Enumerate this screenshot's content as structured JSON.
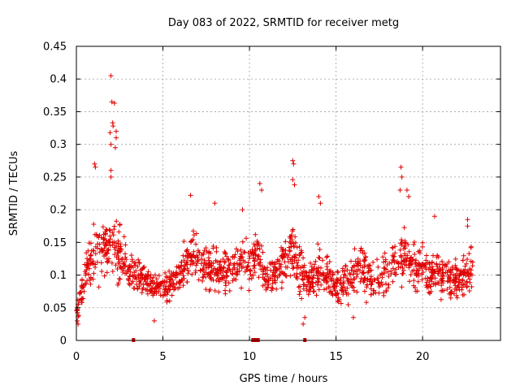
{
  "chart_data": {
    "type": "scatter",
    "title": "Day 083 of 2022, SRMTID for receiver metg",
    "xlabel": "GPS time / hours",
    "ylabel": "SRMTID / TECUs",
    "xlim": [
      0,
      24.5
    ],
    "ylim": [
      0,
      0.45
    ],
    "x_ticks": [
      0,
      5,
      10,
      15,
      20
    ],
    "x_tick_labels": [
      "0",
      "5",
      "10",
      "15",
      "20"
    ],
    "y_ticks": [
      0,
      0.05,
      0.1,
      0.15,
      0.2,
      0.25,
      0.3,
      0.35,
      0.4,
      0.45
    ],
    "y_tick_labels": [
      "0",
      "0.05",
      "0.1",
      "0.15",
      "0.2",
      "0.25",
      "0.3",
      "0.35",
      "0.4",
      "0.45"
    ],
    "grid": true,
    "marker": "plus",
    "series_color": "#e00000",
    "baseline_marks_x": [
      3.3,
      10.2,
      10.35,
      10.5,
      13.2
    ],
    "series": [
      {
        "name": "SRMTID",
        "envelope": {
          "x": [
            0,
            0.3,
            0.7,
            1.0,
            1.5,
            2.0,
            2.5,
            3.0,
            3.5,
            4.0,
            4.5,
            5.0,
            5.5,
            6.0,
            6.5,
            7.0,
            7.5,
            8.0,
            8.5,
            9.0,
            9.5,
            10.0,
            10.5,
            11.0,
            11.5,
            12.0,
            12.5,
            13.0,
            13.5,
            14.0,
            14.5,
            15.0,
            15.5,
            16.0,
            16.5,
            17.0,
            17.5,
            18.0,
            18.5,
            19.0,
            19.5,
            20.0,
            20.5,
            21.0,
            21.5,
            22.0,
            22.5,
            22.9
          ],
          "mean": [
            0.045,
            0.075,
            0.11,
            0.13,
            0.14,
            0.15,
            0.13,
            0.11,
            0.1,
            0.095,
            0.08,
            0.08,
            0.085,
            0.1,
            0.13,
            0.12,
            0.11,
            0.11,
            0.1,
            0.11,
            0.12,
            0.12,
            0.13,
            0.09,
            0.1,
            0.12,
            0.14,
            0.1,
            0.09,
            0.11,
            0.1,
            0.08,
            0.09,
            0.1,
            0.11,
            0.09,
            0.1,
            0.1,
            0.12,
            0.13,
            0.11,
            0.11,
            0.1,
            0.1,
            0.1,
            0.09,
            0.1,
            0.11
          ],
          "spread": [
            0.02,
            0.035,
            0.05,
            0.06,
            0.06,
            0.06,
            0.055,
            0.045,
            0.035,
            0.03,
            0.025,
            0.025,
            0.03,
            0.04,
            0.05,
            0.05,
            0.045,
            0.045,
            0.045,
            0.045,
            0.045,
            0.05,
            0.05,
            0.035,
            0.04,
            0.045,
            0.05,
            0.045,
            0.04,
            0.045,
            0.04,
            0.035,
            0.04,
            0.04,
            0.04,
            0.04,
            0.04,
            0.04,
            0.045,
            0.05,
            0.045,
            0.04,
            0.04,
            0.04,
            0.04,
            0.04,
            0.04,
            0.04
          ]
        },
        "n_points": 1500,
        "seed": 83,
        "peaks": [
          {
            "x": 1.05,
            "y": 0.27
          },
          {
            "x": 1.1,
            "y": 0.265
          },
          {
            "x": 2.0,
            "y": 0.405
          },
          {
            "x": 2.05,
            "y": 0.365
          },
          {
            "x": 2.2,
            "y": 0.363
          },
          {
            "x": 2.1,
            "y": 0.333
          },
          {
            "x": 2.12,
            "y": 0.328
          },
          {
            "x": 1.95,
            "y": 0.318
          },
          {
            "x": 2.3,
            "y": 0.32
          },
          {
            "x": 2.3,
            "y": 0.31
          },
          {
            "x": 2.0,
            "y": 0.3
          },
          {
            "x": 2.25,
            "y": 0.295
          },
          {
            "x": 2.0,
            "y": 0.26
          },
          {
            "x": 2.0,
            "y": 0.25
          },
          {
            "x": 6.6,
            "y": 0.222
          },
          {
            "x": 8.0,
            "y": 0.21
          },
          {
            "x": 9.6,
            "y": 0.2
          },
          {
            "x": 10.6,
            "y": 0.24
          },
          {
            "x": 10.7,
            "y": 0.23
          },
          {
            "x": 12.5,
            "y": 0.275
          },
          {
            "x": 12.55,
            "y": 0.27
          },
          {
            "x": 12.5,
            "y": 0.246
          },
          {
            "x": 12.6,
            "y": 0.238
          },
          {
            "x": 14.0,
            "y": 0.22
          },
          {
            "x": 14.1,
            "y": 0.21
          },
          {
            "x": 18.75,
            "y": 0.265
          },
          {
            "x": 18.8,
            "y": 0.25
          },
          {
            "x": 18.7,
            "y": 0.23
          },
          {
            "x": 19.1,
            "y": 0.23
          },
          {
            "x": 19.2,
            "y": 0.22
          },
          {
            "x": 20.7,
            "y": 0.19
          },
          {
            "x": 22.6,
            "y": 0.185
          },
          {
            "x": 22.6,
            "y": 0.175
          },
          {
            "x": 13.1,
            "y": 0.025
          },
          {
            "x": 13.2,
            "y": 0.035
          },
          {
            "x": 0.1,
            "y": 0.025
          },
          {
            "x": 0.05,
            "y": 0.03
          },
          {
            "x": 4.5,
            "y": 0.03
          },
          {
            "x": 16.0,
            "y": 0.035
          }
        ]
      }
    ]
  }
}
